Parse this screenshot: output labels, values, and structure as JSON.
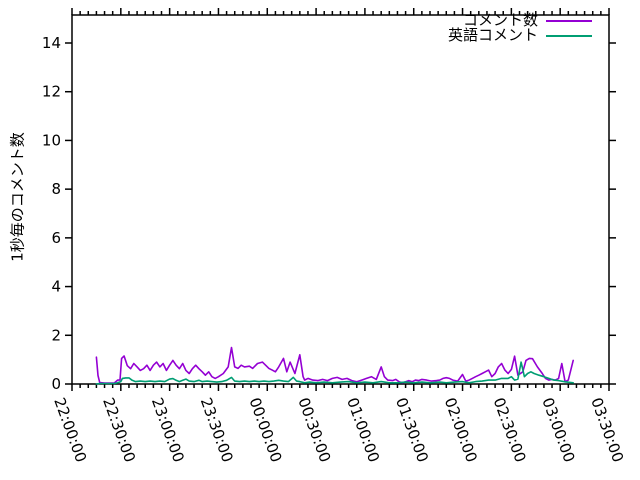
{
  "chart_data": {
    "type": "line",
    "title": "",
    "ylabel": "1秒毎のコメント数",
    "xlabel": "",
    "ylim": [
      0,
      15
    ],
    "yticks": [
      0,
      2,
      4,
      6,
      8,
      10,
      12,
      14
    ],
    "x_tick_labels": [
      "22:00:00",
      "22:30:00",
      "23:00:00",
      "23:30:00",
      "00:00:00",
      "00:30:00",
      "01:00:00",
      "01:30:00",
      "02:00:00",
      "02:30:00",
      "03:00:00",
      "03:30:00"
    ],
    "x_major_tick_minutes": 30,
    "x_minor_tick_minutes": 5,
    "x_range_minutes": [
      0,
      330
    ],
    "x_unit": "minutes after 22:00:00",
    "grid": false,
    "tics_direction": "out",
    "legend_position": "top-right-inside",
    "axis_color": "#000000",
    "background_color": "#ffffff",
    "series": [
      {
        "name": "コメント数",
        "color": "#9400d3",
        "points": [
          [
            15,
            1.1
          ],
          [
            16,
            0.35
          ],
          [
            17,
            0.06
          ],
          [
            20,
            0.04
          ],
          [
            23,
            0.04
          ],
          [
            26,
            0.04
          ],
          [
            28,
            0.16
          ],
          [
            29.5,
            0.16
          ],
          [
            30.5,
            1.05
          ],
          [
            32,
            1.15
          ],
          [
            34,
            0.75
          ],
          [
            36,
            0.63
          ],
          [
            38,
            0.84
          ],
          [
            40,
            0.7
          ],
          [
            42,
            0.56
          ],
          [
            44,
            0.63
          ],
          [
            46,
            0.77
          ],
          [
            48,
            0.56
          ],
          [
            50,
            0.77
          ],
          [
            52,
            0.9
          ],
          [
            54,
            0.7
          ],
          [
            56,
            0.84
          ],
          [
            58,
            0.56
          ],
          [
            60,
            0.77
          ],
          [
            62,
            0.97
          ],
          [
            64,
            0.77
          ],
          [
            66,
            0.63
          ],
          [
            68,
            0.84
          ],
          [
            70,
            0.56
          ],
          [
            72,
            0.43
          ],
          [
            74,
            0.63
          ],
          [
            76,
            0.77
          ],
          [
            78,
            0.63
          ],
          [
            80,
            0.5
          ],
          [
            82,
            0.36
          ],
          [
            84,
            0.5
          ],
          [
            86,
            0.3
          ],
          [
            88,
            0.23
          ],
          [
            90,
            0.3
          ],
          [
            93,
            0.43
          ],
          [
            96,
            0.7
          ],
          [
            98,
            1.5
          ],
          [
            100,
            0.7
          ],
          [
            102,
            0.64
          ],
          [
            104,
            0.77
          ],
          [
            106,
            0.7
          ],
          [
            109,
            0.73
          ],
          [
            111,
            0.64
          ],
          [
            114,
            0.84
          ],
          [
            117,
            0.9
          ],
          [
            119,
            0.77
          ],
          [
            121,
            0.64
          ],
          [
            123,
            0.57
          ],
          [
            125,
            0.5
          ],
          [
            127,
            0.7
          ],
          [
            130,
            1.05
          ],
          [
            132,
            0.5
          ],
          [
            134,
            0.9
          ],
          [
            137,
            0.43
          ],
          [
            140,
            1.2
          ],
          [
            142,
            0.3
          ],
          [
            143,
            0.16
          ],
          [
            145,
            0.23
          ],
          [
            148,
            0.16
          ],
          [
            151,
            0.14
          ],
          [
            154,
            0.19
          ],
          [
            157,
            0.14
          ],
          [
            160,
            0.23
          ],
          [
            163,
            0.27
          ],
          [
            166,
            0.19
          ],
          [
            169,
            0.23
          ],
          [
            172,
            0.14
          ],
          [
            175,
            0.09
          ],
          [
            178,
            0.16
          ],
          [
            181,
            0.23
          ],
          [
            184,
            0.3
          ],
          [
            187,
            0.19
          ],
          [
            190,
            0.7
          ],
          [
            192,
            0.3
          ],
          [
            194,
            0.16
          ],
          [
            197,
            0.14
          ],
          [
            199,
            0.19
          ],
          [
            201,
            0.09
          ],
          [
            203,
            0.05
          ],
          [
            205,
            0.09
          ],
          [
            207,
            0.14
          ],
          [
            209,
            0.09
          ],
          [
            211,
            0.16
          ],
          [
            213,
            0.14
          ],
          [
            215,
            0.19
          ],
          [
            218,
            0.16
          ],
          [
            221,
            0.12
          ],
          [
            224,
            0.14
          ],
          [
            226,
            0.16
          ],
          [
            228,
            0.23
          ],
          [
            230,
            0.26
          ],
          [
            232,
            0.23
          ],
          [
            234,
            0.16
          ],
          [
            237,
            0.12
          ],
          [
            240,
            0.39
          ],
          [
            242,
            0.12
          ],
          [
            244,
            0.16
          ],
          [
            246,
            0.23
          ],
          [
            248,
            0.3
          ],
          [
            250,
            0.36
          ],
          [
            252,
            0.43
          ],
          [
            254,
            0.5
          ],
          [
            256,
            0.57
          ],
          [
            258,
            0.3
          ],
          [
            260,
            0.43
          ],
          [
            262,
            0.7
          ],
          [
            264,
            0.84
          ],
          [
            266,
            0.57
          ],
          [
            268,
            0.43
          ],
          [
            270,
            0.6
          ],
          [
            272,
            1.14
          ],
          [
            274,
            0.36
          ],
          [
            277,
            0.5
          ],
          [
            279,
            0.97
          ],
          [
            281,
            1.05
          ],
          [
            283,
            1.04
          ],
          [
            286,
            0.7
          ],
          [
            289,
            0.43
          ],
          [
            291,
            0.23
          ],
          [
            293,
            0.16
          ],
          [
            295,
            0.19
          ],
          [
            297,
            0.16
          ],
          [
            299,
            0.23
          ],
          [
            301,
            0.84
          ],
          [
            303,
            0.09
          ],
          [
            305,
            0.16
          ],
          [
            308,
            0.97
          ]
        ]
      },
      {
        "name": "英語コメント",
        "color": "#009e73",
        "points": [
          [
            15,
            0
          ],
          [
            17,
            0.02
          ],
          [
            20,
            0.02
          ],
          [
            23,
            0.02
          ],
          [
            26,
            0.02
          ],
          [
            28,
            0.05
          ],
          [
            30,
            0.1
          ],
          [
            31,
            0.23
          ],
          [
            33,
            0.25
          ],
          [
            35,
            0.25
          ],
          [
            37,
            0.15
          ],
          [
            39,
            0.1
          ],
          [
            42,
            0.12
          ],
          [
            45,
            0.1
          ],
          [
            48,
            0.12
          ],
          [
            51,
            0.1
          ],
          [
            54,
            0.12
          ],
          [
            57,
            0.1
          ],
          [
            60,
            0.2
          ],
          [
            62,
            0.22
          ],
          [
            64,
            0.15
          ],
          [
            66,
            0.1
          ],
          [
            68,
            0.15
          ],
          [
            70,
            0.2
          ],
          [
            72,
            0.12
          ],
          [
            75,
            0.1
          ],
          [
            78,
            0.15
          ],
          [
            80,
            0.1
          ],
          [
            83,
            0.12
          ],
          [
            86,
            0.1
          ],
          [
            89,
            0.08
          ],
          [
            92,
            0.1
          ],
          [
            95,
            0.15
          ],
          [
            98,
            0.27
          ],
          [
            100,
            0.12
          ],
          [
            103,
            0.1
          ],
          [
            106,
            0.12
          ],
          [
            109,
            0.1
          ],
          [
            112,
            0.12
          ],
          [
            115,
            0.1
          ],
          [
            118,
            0.12
          ],
          [
            121,
            0.1
          ],
          [
            124,
            0.12
          ],
          [
            127,
            0.15
          ],
          [
            130,
            0.12
          ],
          [
            133,
            0.1
          ],
          [
            136,
            0.27
          ],
          [
            138,
            0.12
          ],
          [
            140,
            0.1
          ],
          [
            143,
            0.05
          ],
          [
            146,
            0.08
          ],
          [
            150,
            0.05
          ],
          [
            155,
            0.08
          ],
          [
            160,
            0.05
          ],
          [
            165,
            0.08
          ],
          [
            170,
            0.1
          ],
          [
            175,
            0.05
          ],
          [
            180,
            0.08
          ],
          [
            185,
            0.05
          ],
          [
            190,
            0.1
          ],
          [
            195,
            0.05
          ],
          [
            200,
            0.05
          ],
          [
            205,
            0.08
          ],
          [
            210,
            0.05
          ],
          [
            215,
            0.08
          ],
          [
            220,
            0.05
          ],
          [
            226,
            0.08
          ],
          [
            230,
            0.05
          ],
          [
            235,
            0.08
          ],
          [
            240,
            0.1
          ],
          [
            244,
            0.05
          ],
          [
            248,
            0.1
          ],
          [
            252,
            0.12
          ],
          [
            256,
            0.16
          ],
          [
            260,
            0.16
          ],
          [
            264,
            0.23
          ],
          [
            268,
            0.23
          ],
          [
            270,
            0.3
          ],
          [
            272,
            0.16
          ],
          [
            274,
            0.2
          ],
          [
            276,
            0.9
          ],
          [
            278,
            0.3
          ],
          [
            280,
            0.43
          ],
          [
            282,
            0.5
          ],
          [
            284,
            0.43
          ],
          [
            287,
            0.36
          ],
          [
            290,
            0.3
          ],
          [
            293,
            0.23
          ],
          [
            296,
            0.16
          ],
          [
            299,
            0.14
          ],
          [
            303,
            0.09
          ],
          [
            308,
            0.05
          ]
        ]
      }
    ]
  }
}
